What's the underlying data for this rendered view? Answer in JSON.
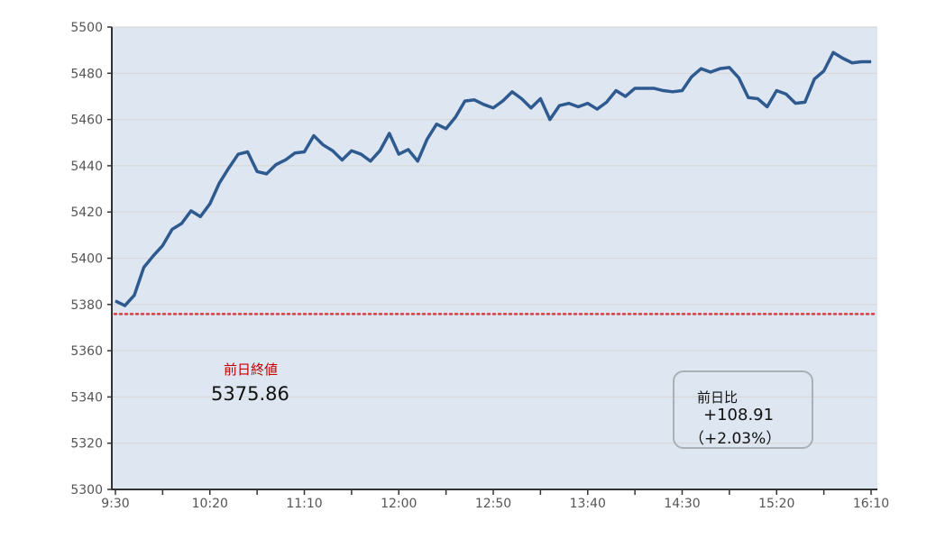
{
  "chart_data": {
    "type": "line",
    "title": "",
    "xlabel": "",
    "ylabel": "",
    "ylim": [
      5300,
      5500
    ],
    "yticks": [
      5300,
      5320,
      5340,
      5360,
      5380,
      5400,
      5420,
      5440,
      5460,
      5480,
      5500
    ],
    "xtick_labels": [
      "9:30",
      "10:20",
      "11:10",
      "12:00",
      "12:50",
      "13:40",
      "14:30",
      "15:20",
      "16:10"
    ],
    "grid": true,
    "colors": {
      "line": "#2f5a8f",
      "plot_bg": "#dde6f1",
      "reference": "#d04040",
      "grid": "#d9d9d9"
    },
    "x": [
      "9:30",
      "9:35",
      "9:40",
      "9:45",
      "9:50",
      "9:55",
      "10:00",
      "10:05",
      "10:10",
      "10:15",
      "10:20",
      "10:25",
      "10:30",
      "10:35",
      "10:40",
      "10:45",
      "10:50",
      "10:55",
      "11:00",
      "11:05",
      "11:10",
      "11:15",
      "11:20",
      "11:25",
      "11:30",
      "11:35",
      "11:40",
      "11:45",
      "11:50",
      "11:55",
      "12:00",
      "12:05",
      "12:10",
      "12:15",
      "12:20",
      "12:25",
      "12:30",
      "12:35",
      "12:40",
      "12:45",
      "12:50",
      "12:55",
      "13:00",
      "13:05",
      "13:10",
      "13:15",
      "13:20",
      "13:25",
      "13:30",
      "13:35",
      "13:40",
      "13:45",
      "13:50",
      "13:55",
      "14:00",
      "14:05",
      "14:10",
      "14:15",
      "14:20",
      "14:25",
      "14:30",
      "14:35",
      "14:40",
      "14:45",
      "14:50",
      "14:55",
      "15:00",
      "15:05",
      "15:10",
      "15:15",
      "15:20",
      "15:25",
      "15:30",
      "15:35",
      "15:40",
      "15:45",
      "15:50",
      "15:55",
      "16:00",
      "16:05",
      "16:10"
    ],
    "series": [
      {
        "values": [
          5381.5,
          5379.5,
          5384,
          5396,
          5401,
          5405.5,
          5412.5,
          5415,
          5420.5,
          5418,
          5423.5,
          5432.5,
          5439,
          5445,
          5446,
          5437.5,
          5436.5,
          5440.5,
          5442.5,
          5445.5,
          5446,
          5453,
          5449,
          5446.5,
          5442.5,
          5446.5,
          5445,
          5442,
          5446.5,
          5454,
          5445,
          5447,
          5442,
          5451.5,
          5458,
          5456,
          5461,
          5468,
          5468.5,
          5466.5,
          5465,
          5468,
          5472,
          5469,
          5465,
          5469,
          5460,
          5466,
          5467,
          5465.5,
          5467,
          5464.5,
          5467.5,
          5472.5,
          5470,
          5473.5,
          5473.5,
          5473.5,
          5472.5,
          5472,
          5472.5,
          5478.5,
          5482,
          5480.5,
          5482,
          5482.5,
          5478,
          5469.5,
          5469,
          5465.5,
          5472.5,
          5471,
          5467,
          5467.5,
          5477.5,
          5481,
          5489,
          5486.5,
          5484.5,
          5485,
          5485
        ]
      }
    ],
    "reference_line": {
      "value": 5375.86,
      "style": "dotted"
    },
    "annotations": {
      "prev_close_label": "前日終値",
      "prev_close_value": "5375.86",
      "change_label": "前日比",
      "change_value": "+108.91",
      "change_pct": "（+2.03%）"
    }
  }
}
